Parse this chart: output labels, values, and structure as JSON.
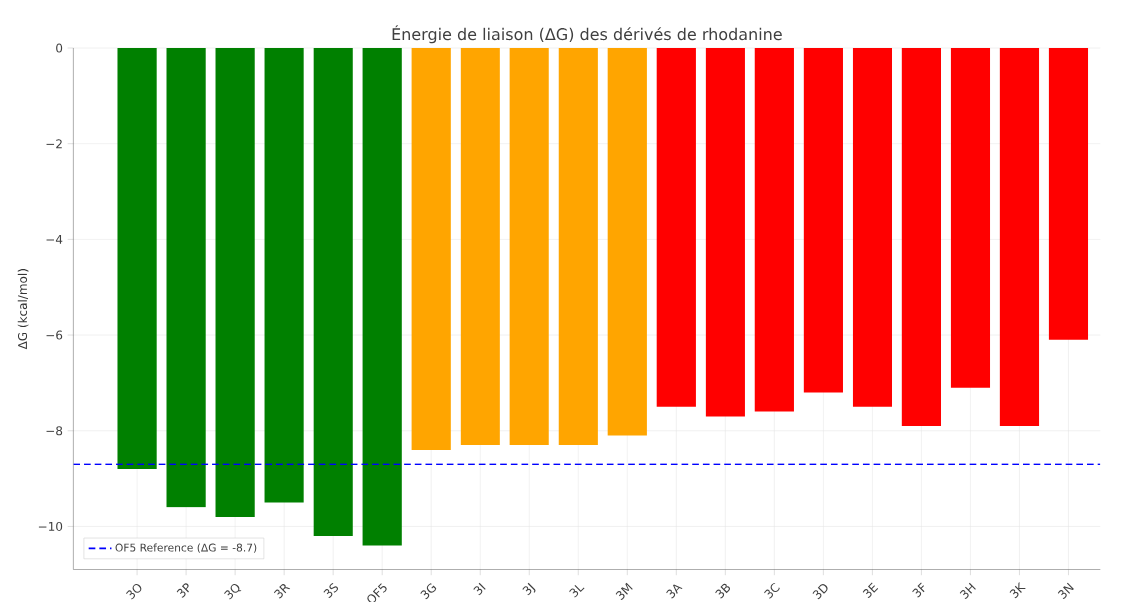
{
  "chart_data": {
    "type": "bar",
    "title": "Énergie de liaison (ΔG) des dérivés de rhodanine",
    "ylabel": "ΔG (kcal/mol)",
    "categories": [
      "3O",
      "3P",
      "3Q",
      "3R",
      "3S",
      "OF5",
      "3G",
      "3I",
      "3J",
      "3L",
      "3M",
      "3A",
      "3B",
      "3C",
      "3D",
      "3E",
      "3F",
      "3H",
      "3K",
      "3N"
    ],
    "values": [
      -8.8,
      -9.6,
      -9.8,
      -9.5,
      -10.2,
      -10.4,
      -8.4,
      -8.3,
      -8.3,
      -8.3,
      -8.1,
      -7.5,
      -7.7,
      -7.6,
      -7.2,
      -7.5,
      -7.9,
      -7.1,
      -7.9,
      -6.1
    ],
    "colors": [
      "#008000",
      "#008000",
      "#008000",
      "#008000",
      "#008000",
      "#008000",
      "#ffa500",
      "#ffa500",
      "#ffa500",
      "#ffa500",
      "#ffa500",
      "#ff0000",
      "#ff0000",
      "#ff0000",
      "#ff0000",
      "#ff0000",
      "#ff0000",
      "#ff0000",
      "#ff0000",
      "#ff0000"
    ],
    "ylim": [
      -10.9,
      0
    ],
    "yticks": [
      {
        "value": -10,
        "label": "−10"
      },
      {
        "value": -8,
        "label": "−8"
      },
      {
        "value": -6,
        "label": "−6"
      },
      {
        "value": -4,
        "label": "−4"
      },
      {
        "value": -2,
        "label": "−2"
      },
      0
    ],
    "ref_lines": [
      {
        "axis": "y",
        "value": -8.7,
        "label": "OF5 Reference (ΔG = -8.7)",
        "color": "#0000ff",
        "line_style": "dashed"
      }
    ],
    "grid": true,
    "legend": "bottom left"
  }
}
